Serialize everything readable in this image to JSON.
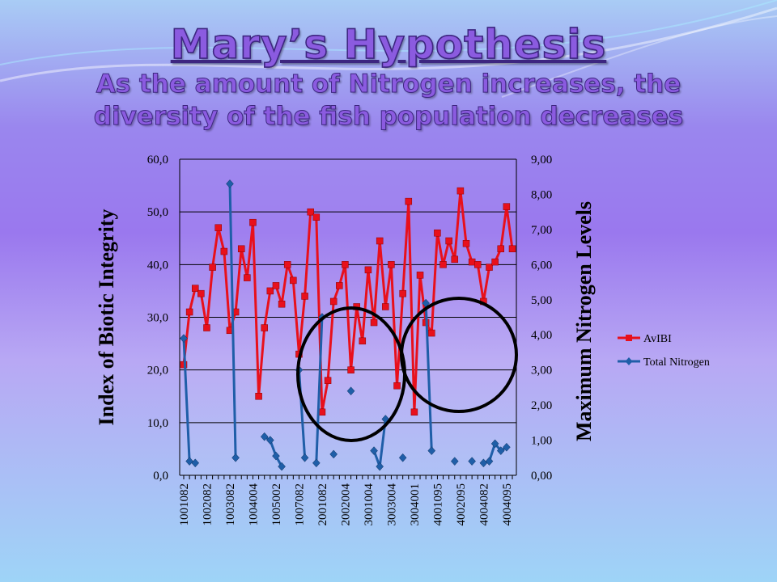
{
  "slide": {
    "title": "Mary’s Hypothesis",
    "subtitle": "As the amount of Nitrogen increases, the diversity of the fish population decreases"
  },
  "colors": {
    "avibi": "#e8101c",
    "nitrogen": "#1f5ea8",
    "title_fill": "#8b5be0"
  },
  "chart_data": {
    "type": "line",
    "ylabel": "Index of Biotic Integrity",
    "y2label": "Maximum Nitrogen Levels",
    "ylim": [
      0,
      60
    ],
    "y2lim": [
      0,
      9
    ],
    "yticks": [
      "0,0",
      "10,0",
      "20,0",
      "30,0",
      "40,0",
      "50,0",
      "60,0"
    ],
    "y2ticks": [
      "0,00",
      "1,00",
      "2,00",
      "3,00",
      "4,00",
      "5,00",
      "6,00",
      "7,00",
      "8,00",
      "9,00"
    ],
    "grid": true,
    "legend": "right",
    "category_count": 58,
    "x_tick_labels": [
      "1001082",
      "1002082",
      "1003082",
      "1004004",
      "1005002",
      "1007082",
      "2001082",
      "2002004",
      "3001004",
      "3003004",
      "3004001",
      "4001095",
      "4002095",
      "4004082",
      "4004095"
    ],
    "series": [
      {
        "name": "AvIBI",
        "axis": "left",
        "values": [
          21,
          31,
          35.5,
          34.5,
          28,
          39.5,
          47,
          42.5,
          27.5,
          31,
          43,
          37.5,
          48,
          15,
          28,
          35,
          36,
          32.5,
          40,
          37,
          23,
          34,
          50,
          49,
          12,
          18,
          33,
          36,
          40,
          20,
          32,
          25.5,
          39,
          29,
          44.5,
          32,
          40,
          17,
          34.5,
          52,
          12,
          38,
          29,
          27,
          46,
          40,
          44.5,
          41,
          54,
          44,
          40.5,
          40,
          33,
          39.5,
          40.5,
          43,
          51,
          43
        ]
      },
      {
        "name": "Total Nitrogen",
        "axis": "right",
        "values": [
          3.9,
          0.4,
          0.35,
          null,
          null,
          null,
          null,
          null,
          8.3,
          0.5,
          null,
          null,
          null,
          null,
          1.1,
          1.0,
          0.55,
          0.25,
          null,
          null,
          3.0,
          0.5,
          null,
          0.35,
          4.5,
          null,
          0.6,
          null,
          null,
          2.4,
          null,
          null,
          null,
          0.7,
          0.25,
          1.6,
          null,
          null,
          0.5,
          null,
          null,
          null,
          4.9,
          0.7,
          null,
          null,
          null,
          0.4,
          null,
          null,
          0.4,
          null,
          0.35,
          0.4,
          0.9,
          0.7,
          0.8,
          null
        ]
      }
    ]
  }
}
